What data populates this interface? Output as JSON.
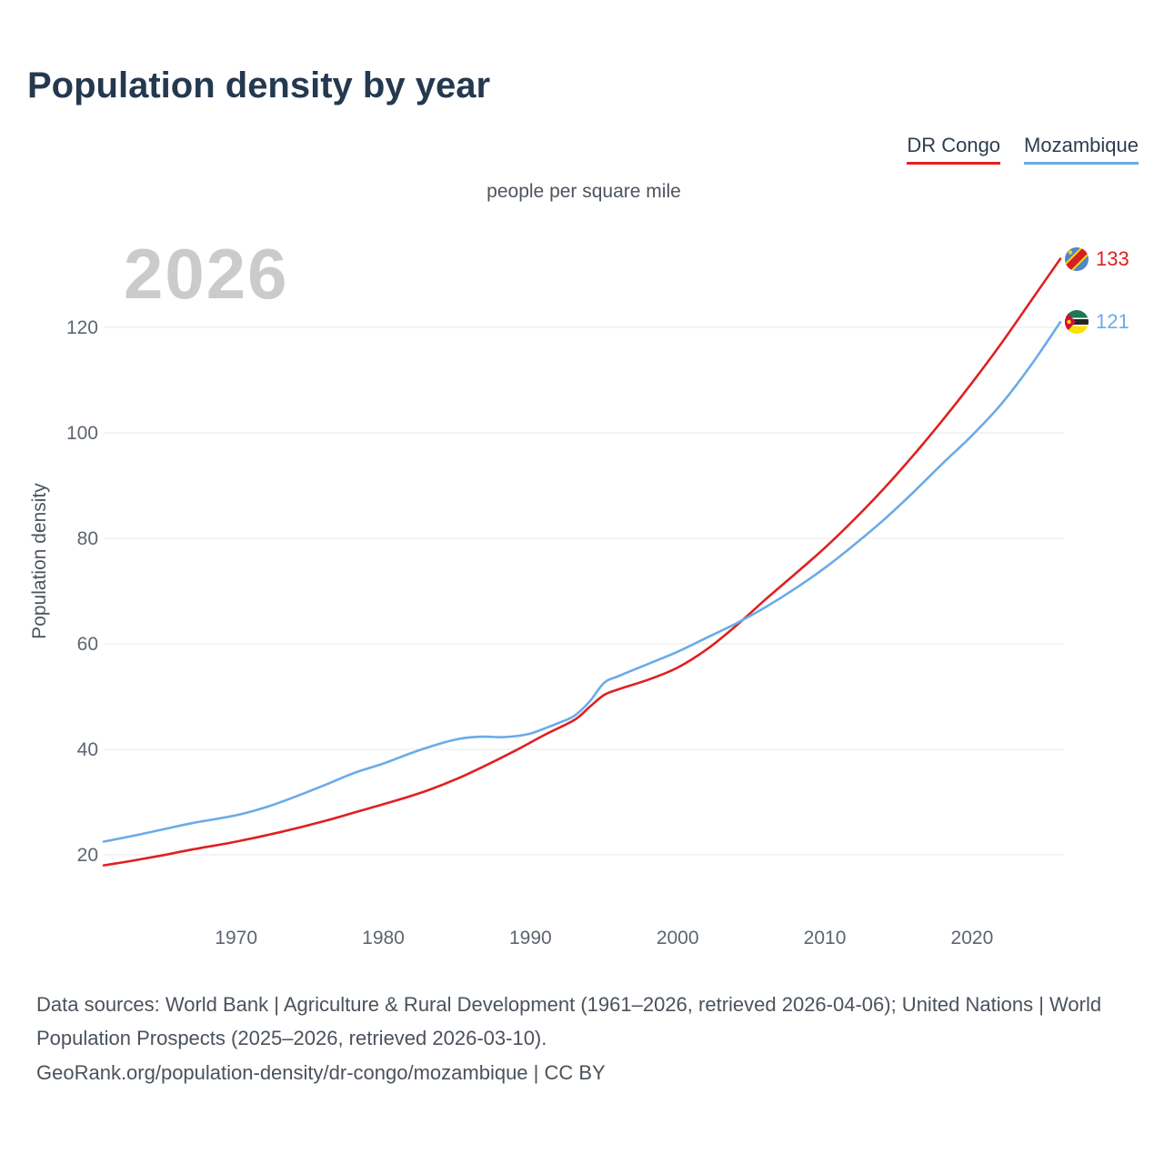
{
  "header": {
    "title": "Population density by year"
  },
  "legend": {
    "items": [
      {
        "label": "DR Congo",
        "color": "#e02020"
      },
      {
        "label": "Mozambique",
        "color": "#6aabe8"
      }
    ]
  },
  "subtitle": "people per square mile",
  "watermark_year": "2026",
  "y_axis_title": "Population density",
  "chart_data": {
    "type": "line",
    "title": "Population density by year",
    "unit": "people per square mile",
    "x_range": [
      1961,
      2026
    ],
    "x_ticks": [
      1970,
      1980,
      1990,
      2000,
      2010,
      2020
    ],
    "y_ticks": [
      20,
      40,
      60,
      80,
      100,
      120
    ],
    "grid": "horizontal",
    "legend_position": "top-right",
    "series": [
      {
        "name": "DR Congo",
        "color": "#e02020",
        "end_label": "133",
        "flag_icon": "dr-congo-flag-icon",
        "points": [
          [
            1961,
            18
          ],
          [
            1963,
            18.9
          ],
          [
            1965,
            19.9
          ],
          [
            1967,
            21
          ],
          [
            1970,
            22.5
          ],
          [
            1973,
            24.3
          ],
          [
            1976,
            26.4
          ],
          [
            1979,
            28.8
          ],
          [
            1981,
            30.4
          ],
          [
            1983,
            32.2
          ],
          [
            1985,
            34.4
          ],
          [
            1987,
            37
          ],
          [
            1989,
            39.8
          ],
          [
            1991,
            42.8
          ],
          [
            1993,
            45.6
          ],
          [
            1994,
            48
          ],
          [
            1995,
            50.3
          ],
          [
            1996,
            51.4
          ],
          [
            1998,
            53.2
          ],
          [
            2000,
            55.5
          ],
          [
            2002,
            59
          ],
          [
            2004,
            63.5
          ],
          [
            2006,
            68.5
          ],
          [
            2008,
            73.3
          ],
          [
            2010,
            78.2
          ],
          [
            2012,
            83.6
          ],
          [
            2014,
            89.4
          ],
          [
            2016,
            95.7
          ],
          [
            2018,
            102.4
          ],
          [
            2020,
            109.5
          ],
          [
            2022,
            117
          ],
          [
            2024,
            125
          ],
          [
            2026,
            133
          ]
        ]
      },
      {
        "name": "Mozambique",
        "color": "#6aabe8",
        "end_label": "121",
        "flag_icon": "mozambique-flag-icon",
        "points": [
          [
            1961,
            22.5
          ],
          [
            1963,
            23.6
          ],
          [
            1965,
            24.8
          ],
          [
            1967,
            26
          ],
          [
            1970,
            27.5
          ],
          [
            1972,
            29
          ],
          [
            1974,
            31
          ],
          [
            1976,
            33.2
          ],
          [
            1978,
            35.5
          ],
          [
            1980,
            37.3
          ],
          [
            1982,
            39.4
          ],
          [
            1984,
            41.2
          ],
          [
            1985,
            41.9
          ],
          [
            1986,
            42.3
          ],
          [
            1987,
            42.4
          ],
          [
            1988,
            42.3
          ],
          [
            1989,
            42.5
          ],
          [
            1990,
            43
          ],
          [
            1991,
            44
          ],
          [
            1992,
            45.1
          ],
          [
            1993,
            46.4
          ],
          [
            1994,
            49
          ],
          [
            1995,
            52.6
          ],
          [
            1996,
            53.9
          ],
          [
            1998,
            56.2
          ],
          [
            2000,
            58.5
          ],
          [
            2002,
            61.2
          ],
          [
            2004,
            63.9
          ],
          [
            2006,
            67
          ],
          [
            2008,
            70.5
          ],
          [
            2010,
            74.4
          ],
          [
            2012,
            78.8
          ],
          [
            2014,
            83.5
          ],
          [
            2016,
            88.7
          ],
          [
            2018,
            94.2
          ],
          [
            2020,
            99.5
          ],
          [
            2022,
            105.5
          ],
          [
            2024,
            112.8
          ],
          [
            2026,
            121
          ]
        ]
      }
    ]
  },
  "footer": {
    "sources": "Data sources: World Bank | Agriculture & Rural Development (1961–2026, retrieved 2026-04-06); United Nations | World Population Prospects (2025–2026, retrieved 2026-03-10).",
    "attribution": "GeoRank.org/population-density/dr-congo/mozambique | CC BY"
  }
}
